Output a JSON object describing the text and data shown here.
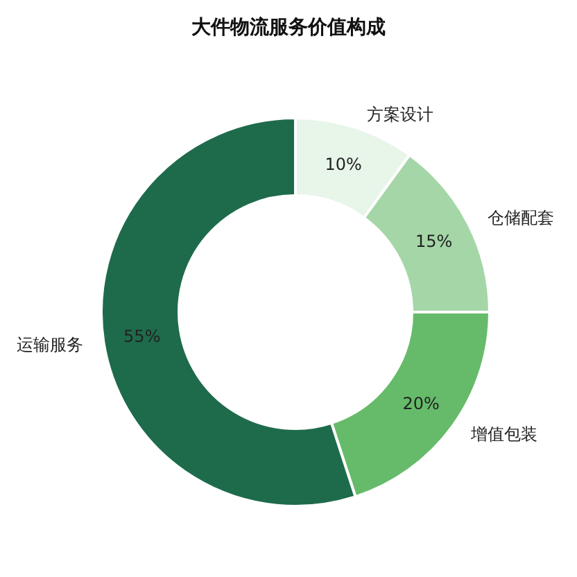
{
  "chart_data": {
    "type": "donut",
    "title": "大件物流服务价值构成",
    "categories": [
      "方案设计",
      "仓储配套",
      "增值包装",
      "运输服务"
    ],
    "values": [
      10,
      15,
      20,
      55
    ],
    "colors": [
      "#e8f5e9",
      "#a5d6a7",
      "#66bb6a",
      "#1e6b4b"
    ],
    "value_labels": [
      "10%",
      "15%",
      "20%",
      "55%"
    ],
    "legend": false
  }
}
